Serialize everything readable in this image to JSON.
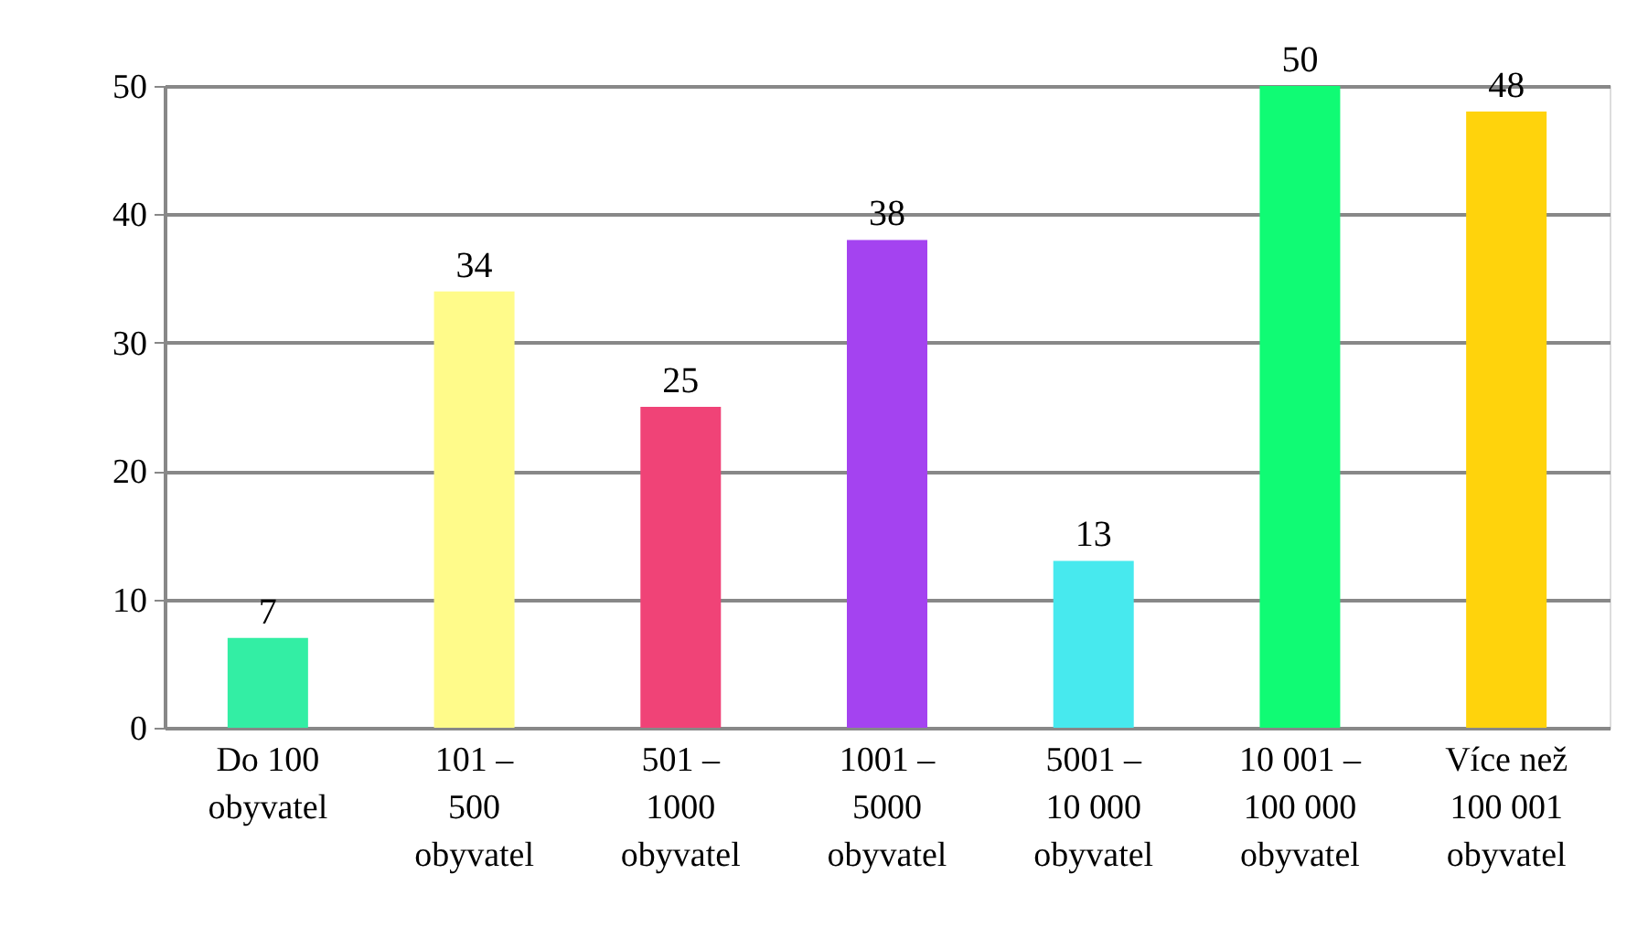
{
  "chart_data": {
    "type": "bar",
    "categories": [
      "Do 100 obyvatel",
      "101 – 500 obyvatel",
      "501 – 1000 obyvatel",
      "1001 – 5000 obyvatel",
      "5001 – 10 000 obyvatel",
      "10 001 – 100 000 obyvatel",
      "Více než 100 001 obyvatel"
    ],
    "values": [
      7,
      34,
      25,
      38,
      13,
      50,
      48
    ],
    "colors": [
      "#33eea4",
      "#fffb8a",
      "#f04377",
      "#a443f0",
      "#47e9ee",
      "#10fb74",
      "#ffd30c"
    ],
    "ylim": [
      0,
      50
    ],
    "yticks": [
      0,
      10,
      20,
      30,
      40,
      50
    ],
    "grid": "y",
    "data_labels": true
  }
}
